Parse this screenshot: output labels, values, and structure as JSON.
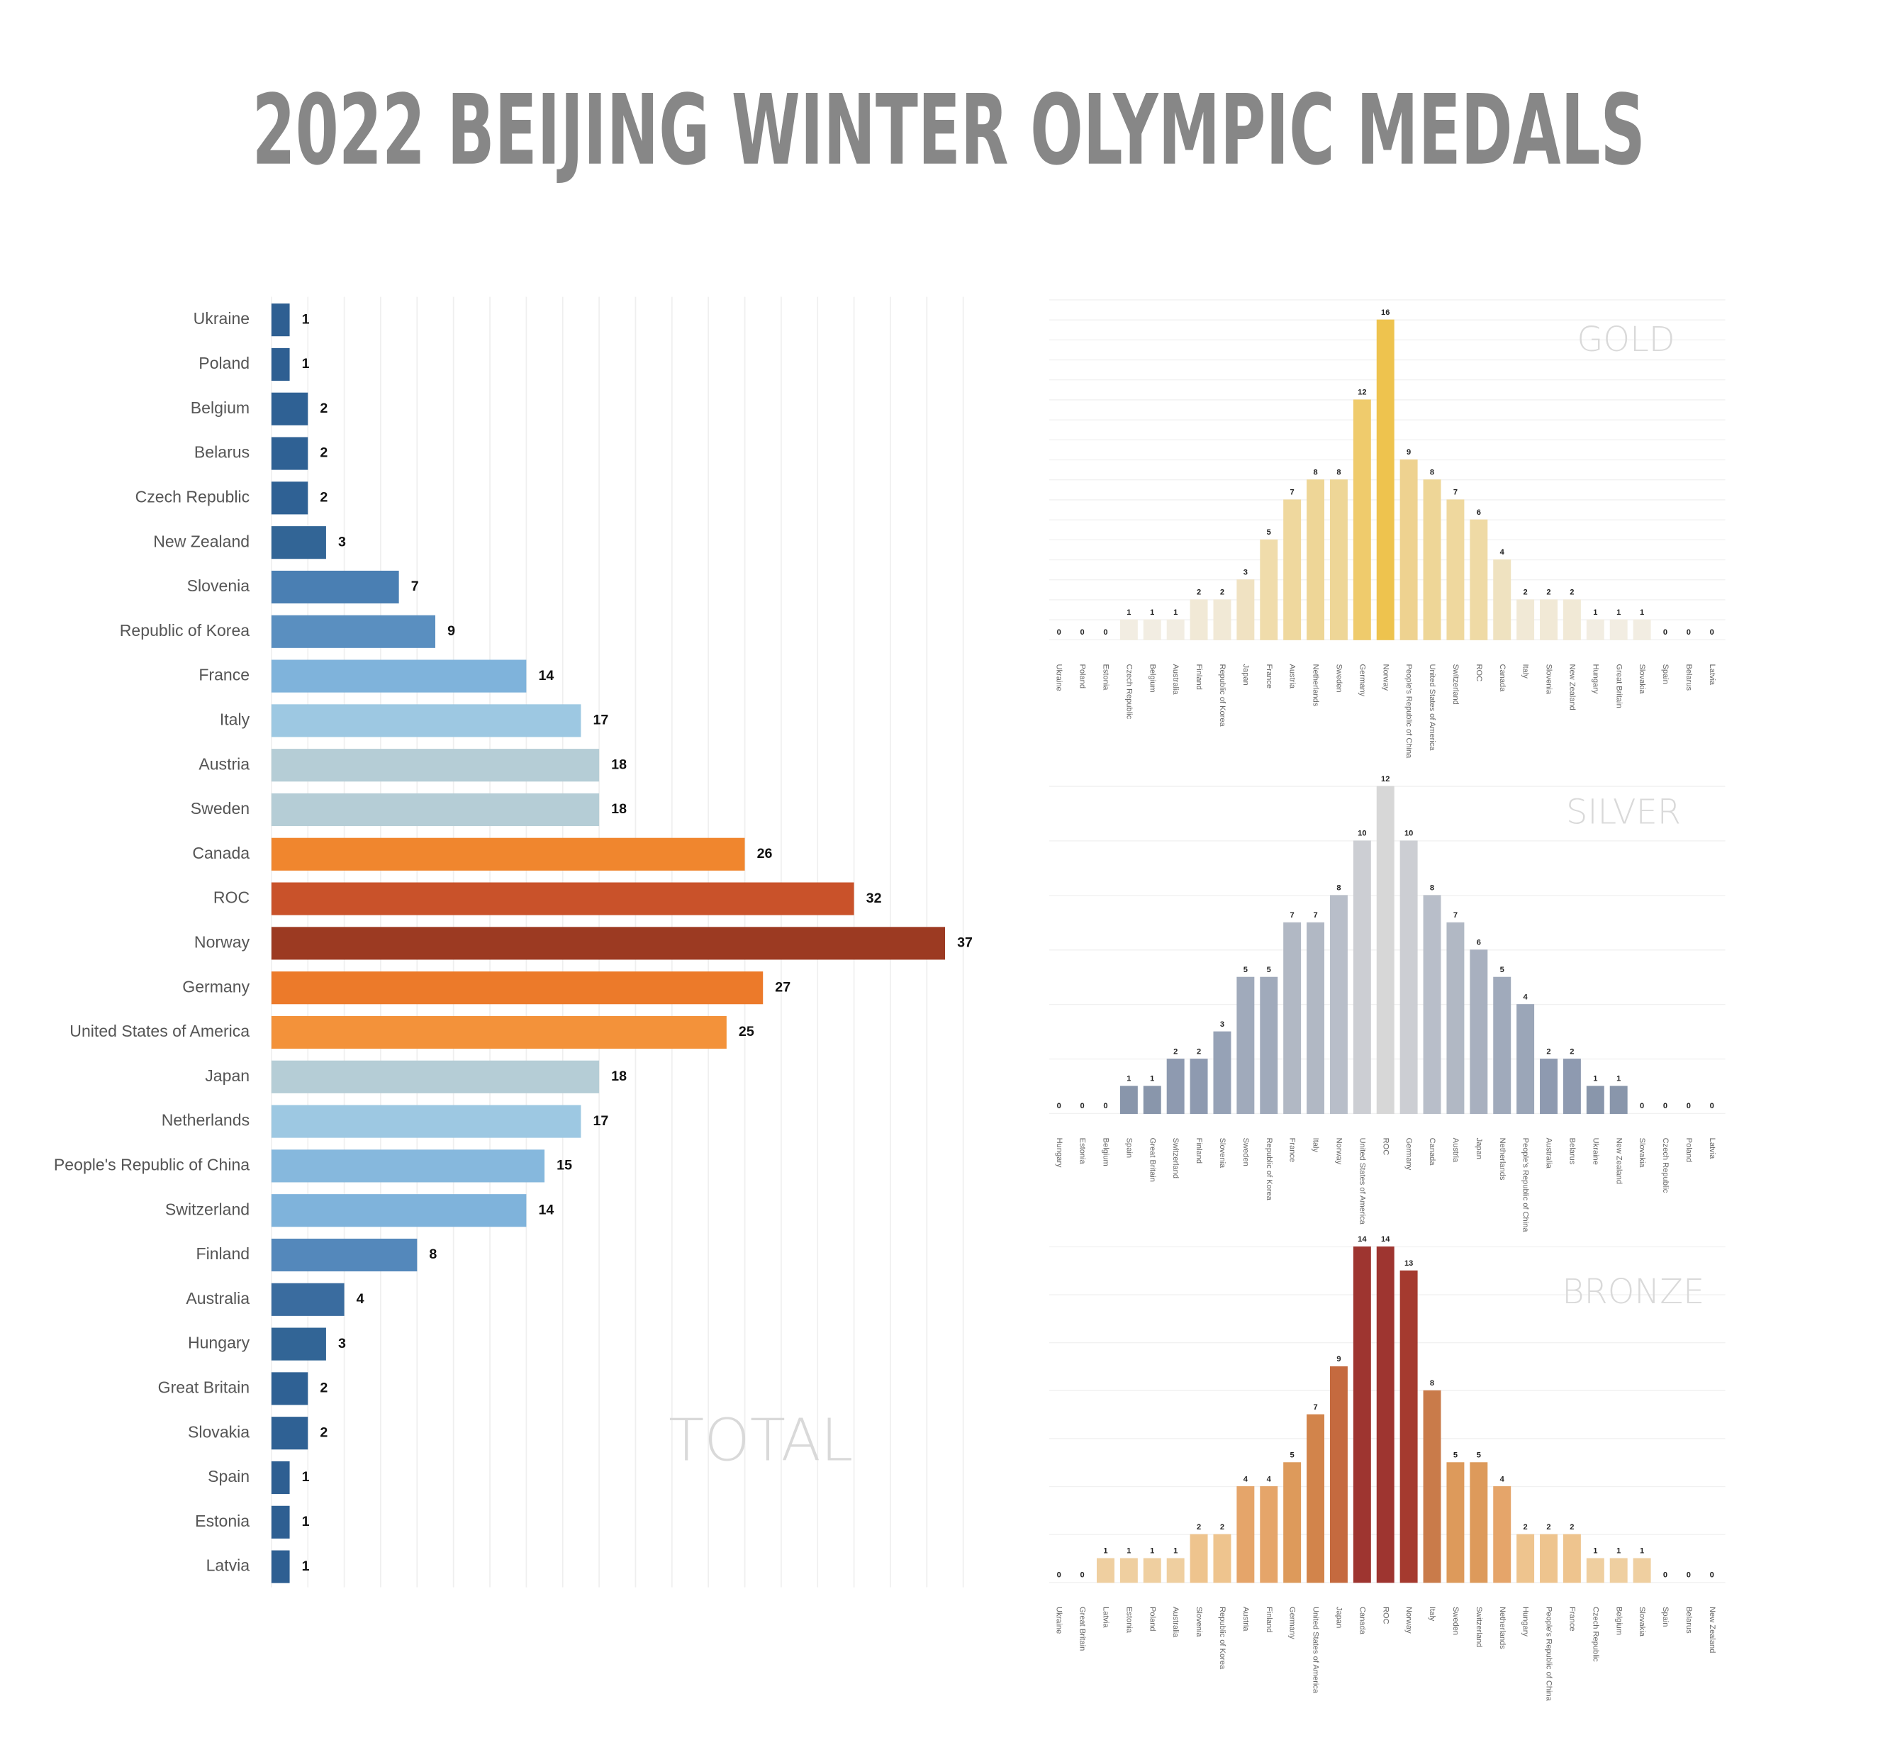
{
  "title": "2022 BEIJING WINTER OLYMPIC MEDALS",
  "chart_data": [
    {
      "type": "bar",
      "orientation": "horizontal",
      "title": "TOTAL",
      "categories": [
        "Ukraine",
        "Poland",
        "Belgium",
        "Belarus",
        "Czech Republic",
        "New Zealand",
        "Slovenia",
        "Republic of Korea",
        "France",
        "Italy",
        "Austria",
        "Sweden",
        "Canada",
        "ROC",
        "Norway",
        "Germany",
        "United States of America",
        "Japan",
        "Netherlands",
        "People's Republic of China",
        "Switzerland",
        "Finland",
        "Australia",
        "Hungary",
        "Great Britain",
        "Slovakia",
        "Spain",
        "Estonia",
        "Latvia"
      ],
      "values": [
        1,
        1,
        2,
        2,
        2,
        3,
        7,
        9,
        14,
        17,
        18,
        18,
        26,
        32,
        37,
        27,
        25,
        18,
        17,
        15,
        14,
        8,
        4,
        3,
        2,
        2,
        1,
        1,
        1
      ],
      "colors": [
        "#2e5f92",
        "#2e5f92",
        "#2f6194",
        "#2f6194",
        "#2f6194",
        "#326596",
        "#4a7fb3",
        "#5a8fc0",
        "#7fb3db",
        "#9dc8e2",
        "#b5cdd6",
        "#b5cdd6",
        "#f0862e",
        "#c9522a",
        "#9c3a22",
        "#ec7a2a",
        "#f3923a",
        "#b5cdd6",
        "#9dc8e2",
        "#86b8dd",
        "#7fb3db",
        "#5488bb",
        "#3a6c9f",
        "#326596",
        "#2f6194",
        "#2f6194",
        "#2e5f92",
        "#2e5f92",
        "#2e5f92"
      ],
      "xlim": [
        0,
        38
      ],
      "xticks": [
        0,
        2,
        4,
        6,
        8,
        10,
        12,
        14,
        16,
        18,
        20,
        22,
        24,
        26,
        28,
        30,
        32,
        34,
        36,
        38
      ],
      "grid": true,
      "tick_labels": false
    },
    {
      "type": "bar",
      "orientation": "vertical",
      "title": "GOLD",
      "categories": [
        "Ukraine",
        "Poland",
        "Estonia",
        "Czech Republic",
        "Belgium",
        "Australia",
        "Finland",
        "Republic of Korea",
        "Japan",
        "France",
        "Austria",
        "Netherlands",
        "Sweden",
        "Germany",
        "Norway",
        "People's Republic of China",
        "United States of America",
        "Switzerland",
        "ROC",
        "Canada",
        "Italy",
        "Slovenia",
        "New Zealand",
        "Hungary",
        "Great Britain",
        "Slovakia",
        "Spain",
        "Belarus",
        "Latvia"
      ],
      "values": [
        0,
        0,
        0,
        1,
        1,
        1,
        2,
        2,
        3,
        5,
        7,
        8,
        8,
        12,
        16,
        9,
        8,
        7,
        6,
        4,
        2,
        2,
        2,
        1,
        1,
        1,
        0,
        0,
        0
      ],
      "colors": [
        "#ece9e2",
        "#ece9e2",
        "#ece9e2",
        "#f2ede2",
        "#f2ede2",
        "#f2ede2",
        "#f1e9d6",
        "#f1e9d6",
        "#f0e2c2",
        "#f0dcab",
        "#efd89e",
        "#eed697",
        "#eed697",
        "#efcb6c",
        "#eec34e",
        "#eed290",
        "#eed697",
        "#efd89e",
        "#efdaa5",
        "#efe2c0",
        "#f1e9d6",
        "#f1e9d6",
        "#f1e9d6",
        "#f2ede2",
        "#f2ede2",
        "#f2ede2",
        "#ece9e2",
        "#ece9e2",
        "#ece9e2"
      ],
      "ylim": [
        0,
        17
      ],
      "yticks": [
        0,
        1,
        2,
        3,
        4,
        5,
        6,
        7,
        8,
        9,
        10,
        11,
        12,
        13,
        14,
        15,
        16,
        17
      ],
      "grid": true,
      "tick_labels": false
    },
    {
      "type": "bar",
      "orientation": "vertical",
      "title": "SILVER",
      "categories": [
        "Hungary",
        "Estonia",
        "Belgium",
        "Spain",
        "Great Britain",
        "Switzerland",
        "Finland",
        "Slovenia",
        "Sweden",
        "Republic of Korea",
        "France",
        "Italy",
        "Norway",
        "United States of America",
        "ROC",
        "Germany",
        "Canada",
        "Austria",
        "Japan",
        "Netherlands",
        "People's Republic of China",
        "Australia",
        "Belarus",
        "Ukraine",
        "New Zealand",
        "Slovakia",
        "Czech Republic",
        "Poland",
        "Latvia"
      ],
      "values": [
        0,
        0,
        0,
        1,
        1,
        2,
        2,
        3,
        5,
        5,
        7,
        7,
        8,
        10,
        12,
        10,
        8,
        7,
        6,
        5,
        4,
        2,
        2,
        1,
        1,
        0,
        0,
        0,
        0
      ],
      "colors": [
        "#e8e8ea",
        "#e8e8ea",
        "#e8e8ea",
        "#8996ab",
        "#8996ab",
        "#8e9ab0",
        "#8e9ab0",
        "#96a2b6",
        "#a0aabb",
        "#a0aabb",
        "#b1b8c4",
        "#b1b8c4",
        "#b8bec9",
        "#ccced3",
        "#d7d7d7",
        "#ccced3",
        "#b8bec9",
        "#b1b8c4",
        "#a8b0bf",
        "#a0aabb",
        "#9ba6b8",
        "#8e9ab0",
        "#8e9ab0",
        "#8996ab",
        "#8996ab",
        "#e8e8ea",
        "#e8e8ea",
        "#e8e8ea",
        "#e8e8ea"
      ],
      "ylim": [
        0,
        12
      ],
      "yticks": [
        0,
        2,
        4,
        6,
        8,
        10,
        12
      ],
      "grid": true,
      "tick_labels": false
    },
    {
      "type": "bar",
      "orientation": "vertical",
      "title": "BRONZE",
      "categories": [
        "Ukraine",
        "Great Britain",
        "Latvia",
        "Estonia",
        "Poland",
        "Australia",
        "Slovenia",
        "Republic of Korea",
        "Austria",
        "Finland",
        "Germany",
        "United States of America",
        "Japan",
        "Canada",
        "ROC",
        "Norway",
        "Italy",
        "Sweden",
        "Switzerland",
        "Netherlands",
        "Hungary",
        "People's Republic of China",
        "France",
        "Czech Republic",
        "Belgium",
        "Slovakia",
        "Spain",
        "Belarus",
        "New Zealand"
      ],
      "values": [
        0,
        0,
        1,
        1,
        1,
        1,
        2,
        2,
        4,
        4,
        5,
        7,
        9,
        14,
        14,
        13,
        8,
        5,
        5,
        4,
        2,
        2,
        2,
        1,
        1,
        1,
        0,
        0,
        0
      ],
      "colors": [
        "#e8e4df",
        "#e8e4df",
        "#efcfa0",
        "#efcfa0",
        "#efcfa0",
        "#efcfa0",
        "#eec48e",
        "#eec48e",
        "#e5a56a",
        "#e5a56a",
        "#dd9a5b",
        "#d2844b",
        "#c56a3f",
        "#9e3530",
        "#9e3530",
        "#a53a2f",
        "#c97b4a",
        "#dd9a5b",
        "#dd9a5b",
        "#e5a56a",
        "#eec48e",
        "#eec48e",
        "#eec48e",
        "#efcfa0",
        "#efcfa0",
        "#efcfa0",
        "#e8e4df",
        "#e8e4df",
        "#e8e4df"
      ],
      "ylim": [
        0,
        14
      ],
      "yticks": [
        0,
        2,
        4,
        6,
        8,
        10,
        12,
        14
      ],
      "grid": true,
      "tick_labels": false
    }
  ]
}
